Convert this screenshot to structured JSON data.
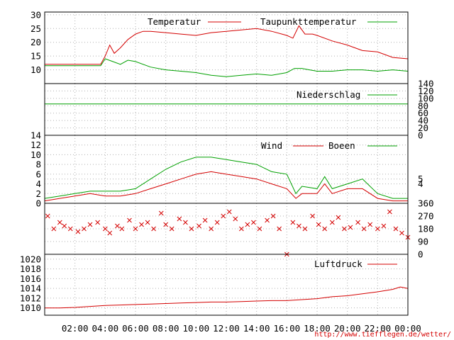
{
  "credit": "http://www.tiefflegen.de/wetter/",
  "colors": {
    "red": "#d40000",
    "green": "#00a000",
    "grid": "#b0b0b0"
  },
  "x_ticks": [
    "02:00",
    "04:00",
    "06:00",
    "08:00",
    "10:00",
    "12:00",
    "14:00",
    "16:00",
    "18:00",
    "20:00",
    "22:00",
    "00:00"
  ],
  "chart_data": [
    {
      "type": "line",
      "x_unit": "hours",
      "xlim": [
        0,
        24
      ],
      "ylim": [
        5,
        31
      ],
      "y_ticks_left": [
        10,
        15,
        20,
        25,
        30
      ],
      "grid": true,
      "legend_position": "top",
      "series": [
        {
          "name": "Temperatur",
          "color": "#d40000",
          "x": [
            0,
            1,
            2,
            3,
            3.7,
            4,
            4.3,
            4.6,
            5,
            5.5,
            6,
            6.5,
            7,
            8,
            9,
            10,
            11,
            12,
            13,
            14,
            15,
            16,
            16.4,
            16.8,
            17.2,
            17.7,
            18,
            19,
            20,
            21,
            22,
            23,
            24
          ],
          "y": [
            12,
            12,
            12,
            12,
            12,
            15,
            19,
            16,
            18,
            21,
            23,
            24,
            24,
            23.5,
            23,
            22.5,
            23.5,
            24,
            24.5,
            25,
            24,
            22.5,
            21.5,
            26,
            23,
            23,
            22.5,
            20.5,
            19,
            17,
            16.5,
            14.5,
            14
          ]
        },
        {
          "name": "Taupunkttemperatur",
          "color": "#00a000",
          "x": [
            0,
            1,
            2,
            3,
            3.7,
            4,
            4.5,
            5,
            5.5,
            6,
            7,
            8,
            9,
            10,
            11,
            12,
            13,
            14,
            15,
            16,
            16.5,
            17,
            17.5,
            18,
            19,
            20,
            21,
            22,
            23,
            24
          ],
          "y": [
            11.5,
            11.5,
            11.5,
            11.5,
            11.5,
            14,
            13,
            12,
            13.5,
            13,
            11,
            10,
            9.5,
            9,
            8,
            7.5,
            8,
            8.5,
            8,
            9,
            10.5,
            10.5,
            10,
            9.5,
            9.5,
            10,
            10,
            9.5,
            10,
            9.5
          ]
        }
      ]
    },
    {
      "type": "line",
      "x_unit": "hours",
      "xlim": [
        0,
        24
      ],
      "ylim": [
        0,
        140
      ],
      "y_ticks_right": [
        0,
        20,
        40,
        60,
        80,
        100,
        120,
        140
      ],
      "grid": true,
      "series": [
        {
          "name": "Niederschlag",
          "color": "#00a000",
          "x": [
            0,
            24
          ],
          "y": [
            85,
            85
          ]
        }
      ]
    },
    {
      "type": "line",
      "x_unit": "hours",
      "xlim": [
        0,
        24
      ],
      "ylim": [
        0,
        14
      ],
      "y_ticks_left": [
        0,
        2,
        4,
        6,
        8,
        10,
        12,
        14
      ],
      "y_ticks_right": [
        4,
        5
      ],
      "grid": true,
      "series": [
        {
          "name": "Wind",
          "color": "#d40000",
          "x": [
            0,
            1,
            2,
            3,
            4,
            5,
            6,
            7,
            8,
            9,
            10,
            11,
            12,
            13,
            14,
            15,
            16,
            16.6,
            17,
            18,
            18.5,
            19,
            20,
            21,
            22,
            23,
            24
          ],
          "y": [
            0.5,
            1,
            1.5,
            2,
            1.5,
            1.5,
            2,
            3,
            4,
            5,
            6,
            6.5,
            6,
            5.5,
            5,
            4,
            3,
            1,
            2,
            2,
            4,
            2,
            3,
            3,
            1,
            0.5,
            0.5
          ]
        },
        {
          "name": "Boeen",
          "color": "#00a000",
          "x": [
            0,
            1,
            2,
            3,
            4,
            5,
            6,
            7,
            8,
            9,
            10,
            11,
            12,
            13,
            14,
            15,
            16,
            16.6,
            17,
            18,
            18.5,
            19,
            20,
            21,
            22,
            23,
            24
          ],
          "y": [
            1,
            1.5,
            2,
            2.5,
            2.5,
            2.5,
            3,
            5,
            7,
            8.5,
            9.5,
            9.5,
            9,
            8.5,
            8,
            6.5,
            6,
            2,
            3.5,
            3,
            5.5,
            3,
            4,
            5,
            2,
            1,
            1
          ]
        }
      ]
    },
    {
      "type": "scatter",
      "x_unit": "hours",
      "xlim": [
        0,
        24
      ],
      "ylim": [
        0,
        360
      ],
      "y_ticks_right": [
        0,
        90,
        180,
        270,
        360
      ],
      "grid": true,
      "series": [
        {
          "color": "#d40000",
          "x": [
            0.2,
            0.6,
            1,
            1.3,
            1.7,
            2.2,
            2.6,
            3,
            3.5,
            4,
            4.3,
            4.8,
            5.1,
            5.6,
            6,
            6.4,
            6.8,
            7.2,
            7.7,
            8,
            8.4,
            8.9,
            9.3,
            9.7,
            10.2,
            10.6,
            11,
            11.4,
            11.8,
            12.2,
            12.6,
            13,
            13.4,
            13.8,
            14.2,
            14.7,
            15.1,
            15.5,
            16,
            16.4,
            16.8,
            17.2,
            17.7,
            18.1,
            18.5,
            19,
            19.4,
            19.8,
            20.2,
            20.7,
            21.1,
            21.5,
            22,
            22.4,
            22.8,
            23.2,
            23.6,
            24
          ],
          "y": [
            270,
            180,
            225,
            200,
            180,
            160,
            180,
            210,
            225,
            180,
            150,
            200,
            180,
            240,
            180,
            210,
            225,
            180,
            290,
            210,
            180,
            250,
            225,
            180,
            200,
            240,
            180,
            225,
            270,
            300,
            250,
            180,
            210,
            225,
            180,
            240,
            270,
            180,
            0,
            225,
            200,
            180,
            270,
            210,
            180,
            225,
            260,
            180,
            190,
            225,
            180,
            210,
            180,
            200,
            300,
            180,
            150,
            120
          ]
        }
      ]
    },
    {
      "type": "line",
      "x_unit": "hours",
      "xlim": [
        0,
        24
      ],
      "ylim": [
        1008.5,
        1021
      ],
      "y_ticks_left": [
        1010,
        1012,
        1014,
        1016,
        1018,
        1020
      ],
      "grid": true,
      "legend_position": "top-right",
      "series": [
        {
          "name": "Luftdruck",
          "color": "#d40000",
          "x": [
            0,
            1,
            2,
            3,
            4,
            5,
            6,
            7,
            8,
            9,
            10,
            11,
            12,
            13,
            14,
            15,
            16,
            17,
            18,
            18.5,
            19,
            20,
            21,
            22,
            23,
            23.5,
            24
          ],
          "y": [
            1010,
            1010,
            1010.1,
            1010.3,
            1010.5,
            1010.6,
            1010.7,
            1010.8,
            1010.9,
            1011,
            1011.1,
            1011.2,
            1011.2,
            1011.3,
            1011.4,
            1011.5,
            1011.5,
            1011.7,
            1011.9,
            1012.1,
            1012.3,
            1012.5,
            1012.9,
            1013.3,
            1013.8,
            1014.3,
            1014
          ]
        }
      ]
    }
  ]
}
